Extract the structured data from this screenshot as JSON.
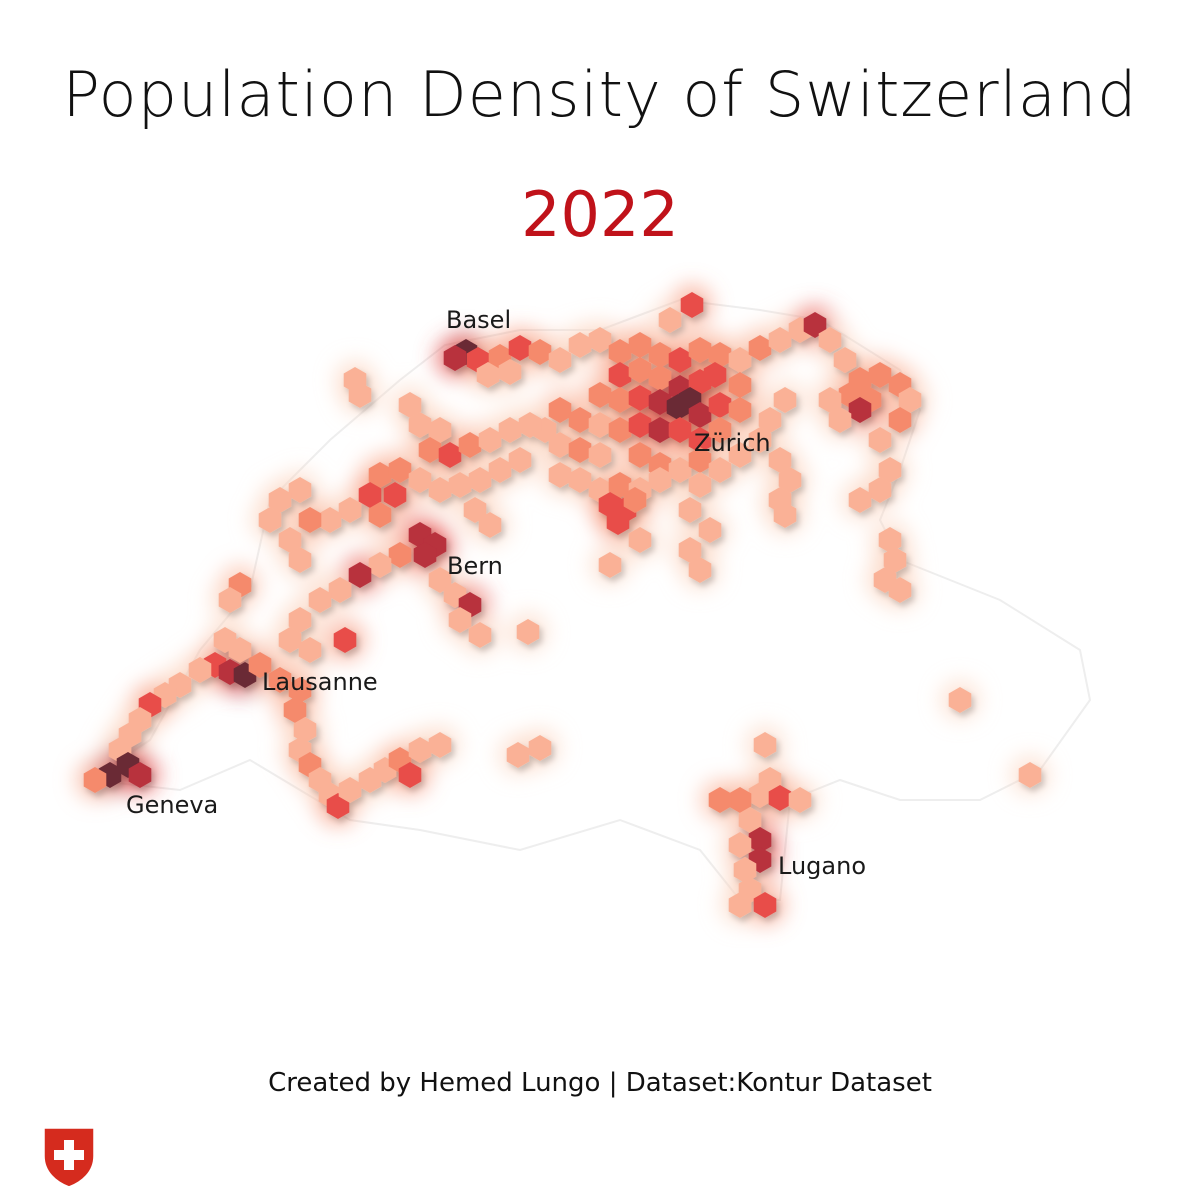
{
  "title": "Population Density of Switzerland",
  "year": "2022",
  "credit": "Created by Hemed Lungo | Dataset:Kontur Dataset",
  "colors": {
    "title": "#111111",
    "year": "#c0121a",
    "density_scale": [
      "#fbd3be",
      "#fab196",
      "#f58a6c",
      "#e84e4a",
      "#b8303e",
      "#6a2a35"
    ],
    "flag_red": "#d52b1e"
  },
  "cities": [
    {
      "name": "Basel"
    },
    {
      "name": "Zürich"
    },
    {
      "name": "Bern"
    },
    {
      "name": "Lausanne"
    },
    {
      "name": "Geneva"
    },
    {
      "name": "Lugano"
    }
  ],
  "flag_icon": "swiss-shield-icon"
}
